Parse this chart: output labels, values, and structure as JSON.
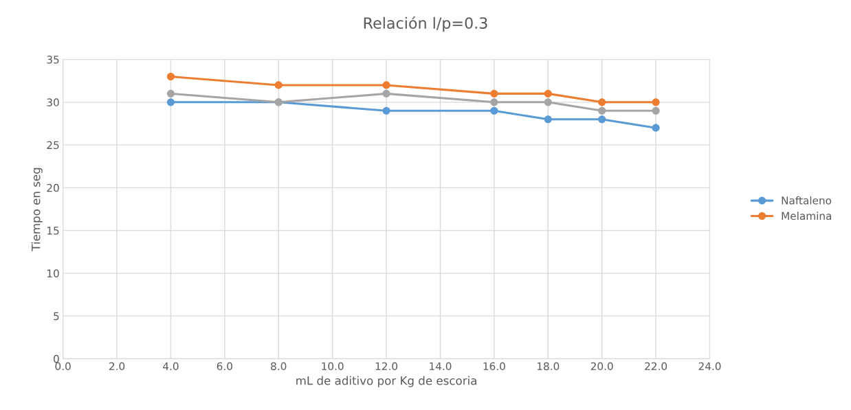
{
  "chart_data": {
    "type": "line",
    "title": "Relación l/p=0.3",
    "xlabel": "mL de aditivo por Kg de escoria",
    "ylabel": "Tiempo en seg",
    "x": [
      4,
      8,
      12,
      16,
      18,
      20,
      22
    ],
    "series": [
      {
        "name": "Naftaleno",
        "color": "#5b9bd5",
        "values": [
          30,
          30,
          29,
          29,
          28,
          28,
          27
        ]
      },
      {
        "name": "Melamina",
        "color": "#ed7d31",
        "values": [
          33,
          32,
          32,
          31,
          31,
          30,
          30
        ]
      },
      {
        "color": "#a5a5a5",
        "values": [
          31,
          30,
          31,
          30,
          30,
          29,
          29
        ]
      }
    ],
    "xlim": [
      0,
      24
    ],
    "xticks": [
      {
        "value": 0,
        "label": "0.0"
      },
      {
        "value": 2,
        "label": "2.0"
      },
      {
        "value": 4,
        "label": "4.0"
      },
      {
        "value": 6,
        "label": "6.0"
      },
      {
        "value": 8,
        "label": "8.0"
      },
      {
        "value": 10,
        "label": "10.0"
      },
      {
        "value": 12,
        "label": "12.0"
      },
      {
        "value": 14,
        "label": "14.0"
      },
      {
        "value": 16,
        "label": "16.0"
      },
      {
        "value": 18,
        "label": "18.0"
      },
      {
        "value": 20,
        "label": "20.0"
      },
      {
        "value": 22,
        "label": "22.0"
      },
      {
        "value": 24,
        "label": "24.0"
      }
    ],
    "ylim": [
      0,
      35
    ],
    "yticks": [
      0,
      5,
      10,
      15,
      20,
      25,
      30,
      35
    ],
    "grid": true,
    "legend": "right",
    "marker": "circle",
    "line_style": "solid"
  }
}
